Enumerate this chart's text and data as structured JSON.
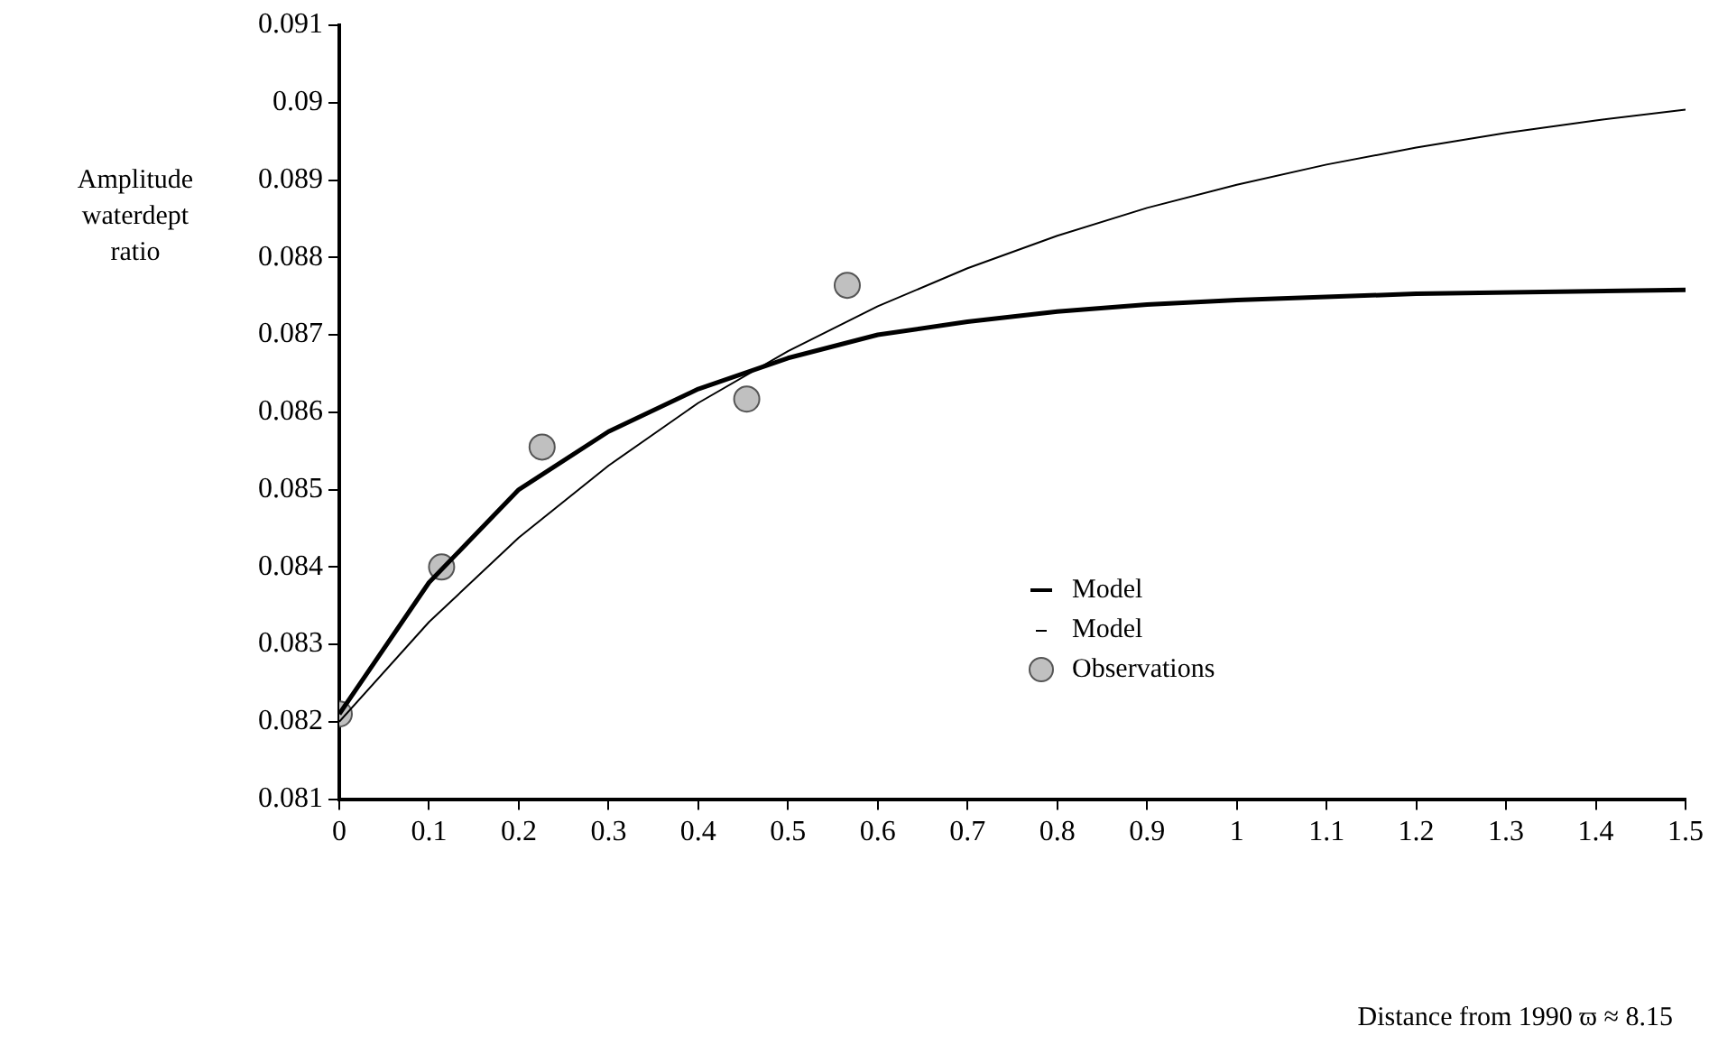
{
  "chart_data": {
    "type": "line",
    "annotations": [
      "Distance from 1990  ϖ ≈ 8.15"
    ],
    "ylabel": "Amplitude waterdept ratio",
    "xlim": [
      0,
      1.5
    ],
    "xticks": [
      0,
      0.1,
      0.2,
      0.3,
      0.4,
      0.5,
      0.6,
      0.7,
      0.8,
      0.9,
      1,
      1.1,
      1.2,
      1.3,
      1.4,
      1.5
    ],
    "ylim": [
      0.081,
      0.091
    ],
    "yticks": [
      0.081,
      0.082,
      0.083,
      0.084,
      0.085,
      0.086,
      0.087,
      0.088,
      0.089,
      0.09,
      0.091
    ],
    "grid": false,
    "legend": "right",
    "line_style": "solid",
    "series": [
      {
        "name": "Model",
        "type": "line",
        "marker": "none",
        "color": "#000000",
        "x": [
          0,
          0.1,
          0.2,
          0.3,
          0.4,
          0.5,
          0.6,
          0.7,
          0.8,
          0.9,
          1,
          1.2,
          1.5
        ],
        "values": [
          0.0821,
          0.0838,
          0.085,
          0.08575,
          0.0863,
          0.0867,
          0.087,
          0.08717,
          0.0873,
          0.08739,
          0.08745,
          0.08753,
          0.08758
        ]
      },
      {
        "name": "Model",
        "type": "line",
        "marker": "none",
        "color": "#000000",
        "x": [
          0,
          0.1,
          0.2,
          0.3,
          0.4,
          0.5,
          0.6,
          0.7,
          0.8,
          0.9,
          1,
          1.1,
          1.2,
          1.3,
          1.4,
          1.5
        ],
        "values": [
          0.082,
          0.08329,
          0.08438,
          0.08531,
          0.08612,
          0.08679,
          0.08737,
          0.08786,
          0.08828,
          0.08864,
          0.08894,
          0.0892,
          0.08942,
          0.08961,
          0.08977,
          0.08991
        ]
      },
      {
        "name": "Observations",
        "type": "scatter",
        "marker": "circle",
        "color": "#c0c0c0",
        "x": [
          0,
          0.114,
          0.226,
          0.454,
          0.566
        ],
        "values": [
          0.0821,
          0.084,
          0.08555,
          0.08617,
          0.08764
        ]
      }
    ]
  }
}
